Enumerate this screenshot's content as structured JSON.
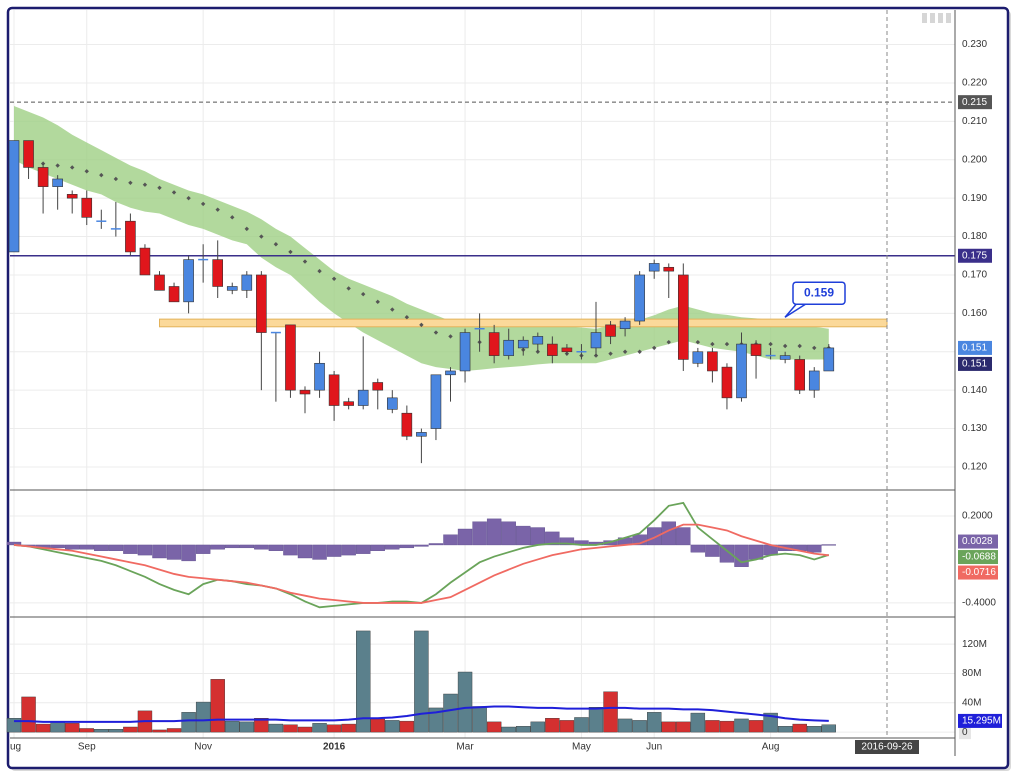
{
  "chart_data": {
    "type": "candlestick",
    "categories": [
      "ug",
      null,
      null,
      null,
      null,
      "Sep",
      null,
      null,
      null,
      null,
      null,
      null,
      null,
      "Nov",
      null,
      null,
      null,
      null,
      null,
      null,
      null,
      null,
      "2016",
      null,
      null,
      null,
      null,
      null,
      null,
      null,
      null,
      "Mar",
      null,
      null,
      null,
      null,
      null,
      null,
      null,
      "May",
      null,
      null,
      null,
      null,
      "Jun",
      null,
      null,
      null,
      null,
      null,
      null,
      null,
      "Aug",
      null,
      null,
      null,
      null,
      null,
      null,
      null,
      "2016-09-26"
    ],
    "open": [
      0.176,
      0.205,
      0.198,
      0.193,
      0.191,
      0.19,
      0.184,
      0.182,
      0.184,
      0.177,
      0.17,
      0.167,
      0.163,
      0.174,
      0.174,
      0.166,
      0.166,
      0.17,
      0.155,
      0.157,
      0.14,
      0.14,
      0.144,
      0.137,
      0.136,
      0.142,
      0.135,
      0.134,
      0.128,
      0.13,
      0.144,
      0.145,
      0.156,
      0.155,
      0.149,
      0.151,
      0.152,
      0.152,
      0.151,
      0.15,
      0.151,
      0.157,
      0.156,
      0.158,
      0.171,
      0.172,
      0.17,
      0.147,
      0.15,
      0.146,
      0.138,
      0.152,
      0.149,
      0.148,
      0.148,
      0.14,
      0.145,
      null,
      null,
      null,
      null
    ],
    "high": [
      0.205,
      0.205,
      0.199,
      0.196,
      0.192,
      0.192,
      0.187,
      0.189,
      0.186,
      0.178,
      0.171,
      0.168,
      0.175,
      0.178,
      0.179,
      0.168,
      0.171,
      0.171,
      0.155,
      0.157,
      0.141,
      0.15,
      0.145,
      0.138,
      0.154,
      0.143,
      0.14,
      0.136,
      0.13,
      0.144,
      0.146,
      0.156,
      0.16,
      0.157,
      0.156,
      0.154,
      0.155,
      0.154,
      0.152,
      0.152,
      0.163,
      0.158,
      0.159,
      0.171,
      0.174,
      0.173,
      0.173,
      0.151,
      0.151,
      0.147,
      0.155,
      0.153,
      0.151,
      0.15,
      0.149,
      0.146,
      0.152,
      null,
      null,
      null,
      null
    ],
    "low": [
      0.176,
      0.195,
      0.186,
      0.187,
      0.186,
      0.183,
      0.182,
      0.18,
      0.175,
      0.17,
      0.166,
      0.163,
      0.16,
      0.168,
      0.164,
      0.165,
      0.164,
      0.14,
      0.137,
      0.138,
      0.134,
      0.138,
      0.132,
      0.135,
      0.135,
      0.135,
      0.134,
      0.127,
      0.121,
      0.127,
      0.137,
      0.142,
      0.15,
      0.147,
      0.148,
      0.149,
      0.15,
      0.147,
      0.149,
      0.148,
      0.149,
      0.152,
      0.154,
      0.157,
      0.169,
      0.164,
      0.145,
      0.146,
      0.142,
      0.135,
      0.137,
      0.143,
      0.148,
      0.147,
      0.139,
      0.138,
      0.145,
      null,
      null,
      null,
      null
    ],
    "close": [
      0.205,
      0.198,
      0.193,
      0.195,
      0.19,
      0.185,
      0.184,
      0.182,
      0.176,
      0.17,
      0.166,
      0.163,
      0.174,
      0.174,
      0.167,
      0.167,
      0.17,
      0.155,
      0.155,
      0.14,
      0.139,
      0.147,
      0.136,
      0.136,
      0.14,
      0.14,
      0.138,
      0.128,
      0.129,
      0.144,
      0.145,
      0.155,
      0.156,
      0.149,
      0.153,
      0.153,
      0.154,
      0.149,
      0.15,
      0.15,
      0.155,
      0.154,
      0.158,
      0.17,
      0.173,
      0.171,
      0.148,
      0.15,
      0.145,
      0.138,
      0.152,
      0.149,
      0.149,
      0.149,
      0.14,
      0.145,
      0.151,
      null,
      null,
      null,
      null
    ],
    "up_color": "#4a86e0",
    "down_color": "#e0161c",
    "ylim": [
      0.114,
      0.239
    ],
    "yticks": [
      {
        "value": 0.12,
        "label": "0.120"
      },
      {
        "value": 0.13,
        "label": "0.130"
      },
      {
        "value": 0.14,
        "label": "0.140"
      },
      {
        "value": 0.15,
        "label": "0.150"
      },
      {
        "value": 0.16,
        "label": "0.160"
      },
      {
        "value": 0.17,
        "label": "0.170"
      },
      {
        "value": 0.18,
        "label": "0.180"
      },
      {
        "value": 0.19,
        "label": "0.190"
      },
      {
        "value": 0.2,
        "label": "0.200"
      },
      {
        "value": 0.21,
        "label": "0.210"
      },
      {
        "value": 0.22,
        "label": "0.220"
      },
      {
        "value": 0.23,
        "label": "0.230"
      }
    ],
    "grid": true,
    "band": {
      "color": "#9fcf84",
      "upper": [
        0.214,
        0.2125,
        0.211,
        0.209,
        0.2065,
        0.2045,
        0.2025,
        0.2005,
        0.1985,
        0.197,
        0.195,
        0.1935,
        0.192,
        0.191,
        0.1895,
        0.188,
        0.1865,
        0.1845,
        0.182,
        0.18,
        0.177,
        0.174,
        0.171,
        0.169,
        0.1675,
        0.166,
        0.1645,
        0.1625,
        0.161,
        0.1595,
        0.158,
        0.157,
        0.157,
        0.157,
        0.157,
        0.157,
        0.157,
        0.157,
        0.1567,
        0.1563,
        0.156,
        0.1568,
        0.1575,
        0.1583,
        0.1595,
        0.161,
        0.162,
        0.161,
        0.16,
        0.1596,
        0.159,
        0.1587,
        0.1583,
        0.1577,
        0.157,
        0.1565,
        0.156,
        null,
        null,
        null,
        null
      ],
      "lower": [
        0.2,
        0.198,
        0.1965,
        0.195,
        0.1935,
        0.192,
        0.191,
        0.189,
        0.1875,
        0.1865,
        0.186,
        0.1845,
        0.183,
        0.182,
        0.1805,
        0.179,
        0.178,
        0.1745,
        0.172,
        0.17,
        0.1665,
        0.163,
        0.16,
        0.1575,
        0.155,
        0.153,
        0.151,
        0.149,
        0.147,
        0.146,
        0.1455,
        0.145,
        0.1453,
        0.1457,
        0.146,
        0.1463,
        0.1467,
        0.147,
        0.147,
        0.147,
        0.147,
        0.148,
        0.149,
        0.15,
        0.151,
        0.152,
        0.153,
        0.152,
        0.151,
        0.1505,
        0.15,
        0.149,
        0.148,
        0.148,
        0.148,
        0.148,
        0.148,
        null,
        null,
        null,
        null
      ]
    },
    "midline": {
      "color": "#555555",
      "values": [
        null,
        0.2,
        0.199,
        0.1985,
        0.198,
        0.197,
        0.196,
        0.195,
        0.194,
        0.1935,
        0.1927,
        0.1915,
        0.19,
        0.1885,
        0.187,
        0.185,
        0.182,
        0.18,
        0.178,
        0.176,
        0.1735,
        0.171,
        0.169,
        0.1665,
        0.165,
        0.163,
        0.161,
        0.159,
        0.157,
        0.155,
        0.154,
        0.153,
        0.1525,
        0.152,
        0.151,
        0.1505,
        0.15,
        0.15,
        0.1495,
        0.149,
        0.149,
        0.1495,
        0.15,
        0.15,
        0.151,
        0.1525,
        0.153,
        0.1525,
        0.152,
        0.152,
        0.152,
        0.152,
        0.152,
        0.1515,
        0.1515,
        0.151,
        0.151,
        null,
        null,
        null,
        null
      ]
    },
    "hlines": [
      {
        "value": 0.215,
        "color": "#555555",
        "dashed": true
      },
      {
        "value": 0.175,
        "color": "#3a2f8a",
        "dashed": false
      }
    ],
    "zone": {
      "from": 0.1565,
      "to": 0.1585,
      "x_index": [
        10,
        60
      ],
      "color": "#fbd99a",
      "border": "#e3b25a"
    },
    "callout": {
      "value": 0.159,
      "color": "#1f3fd9"
    },
    "macd": {
      "ylim": [
        -0.497,
        0.379
      ],
      "yticks": [
        {
          "value": -0.4,
          "label": "-0.4000"
        },
        {
          "value": 0.2,
          "label": "0.2000"
        }
      ],
      "histogram": {
        "color": "#7a64a8",
        "values": [
          0.02,
          -0.01,
          -0.02,
          -0.02,
          -0.03,
          -0.03,
          -0.04,
          -0.04,
          -0.06,
          -0.07,
          -0.09,
          -0.1,
          -0.11,
          -0.06,
          -0.03,
          -0.02,
          -0.02,
          -0.03,
          -0.04,
          -0.07,
          -0.09,
          -0.1,
          -0.08,
          -0.07,
          -0.06,
          -0.04,
          -0.03,
          -0.02,
          -0.01,
          0.01,
          0.07,
          0.11,
          0.16,
          0.18,
          0.16,
          0.13,
          0.12,
          0.09,
          0.05,
          0.03,
          0.02,
          0.03,
          0.05,
          0.07,
          0.12,
          0.16,
          0.12,
          -0.05,
          -0.08,
          -0.12,
          -0.15,
          -0.1,
          -0.07,
          -0.04,
          -0.04,
          -0.05,
          0.0028,
          null,
          null,
          null,
          null
        ]
      },
      "macd": {
        "color": "#6aa45a",
        "values": [
          0,
          -0.01,
          -0.03,
          -0.05,
          -0.07,
          -0.09,
          -0.11,
          -0.14,
          -0.18,
          -0.22,
          -0.27,
          -0.31,
          -0.34,
          -0.27,
          -0.24,
          -0.25,
          -0.27,
          -0.28,
          -0.3,
          -0.34,
          -0.39,
          -0.43,
          -0.42,
          -0.41,
          -0.4,
          -0.4,
          -0.39,
          -0.39,
          -0.4,
          -0.34,
          -0.26,
          -0.19,
          -0.12,
          -0.08,
          -0.05,
          -0.02,
          0,
          0.01,
          0.01,
          0,
          0,
          0.02,
          0.05,
          0.08,
          0.17,
          0.27,
          0.29,
          0.12,
          0.04,
          -0.04,
          -0.12,
          -0.1,
          -0.07,
          -0.06,
          -0.07,
          -0.1,
          -0.0688,
          null,
          null,
          null,
          null
        ]
      },
      "signal": {
        "color": "#f06a62",
        "values": [
          0,
          -0.01,
          -0.02,
          -0.03,
          -0.04,
          -0.06,
          -0.08,
          -0.1,
          -0.12,
          -0.14,
          -0.17,
          -0.2,
          -0.22,
          -0.23,
          -0.24,
          -0.25,
          -0.26,
          -0.28,
          -0.3,
          -0.33,
          -0.35,
          -0.37,
          -0.38,
          -0.39,
          -0.4,
          -0.4,
          -0.4,
          -0.4,
          -0.4,
          -0.38,
          -0.36,
          -0.31,
          -0.26,
          -0.21,
          -0.17,
          -0.13,
          -0.1,
          -0.07,
          -0.05,
          -0.03,
          -0.02,
          -0.01,
          0,
          0.01,
          0.05,
          0.1,
          0.14,
          0.14,
          0.12,
          0.1,
          0.06,
          0.03,
          0,
          -0.02,
          -0.04,
          -0.06,
          -0.0716,
          null,
          null,
          null,
          null
        ]
      }
    },
    "volume": {
      "ylim": [
        -8,
        157
      ],
      "yticks": [
        0,
        {
          "value": 40,
          "label": "40M"
        },
        {
          "value": 80,
          "label": "80M"
        },
        {
          "value": 120,
          "label": "120M"
        }
      ],
      "up_color": "#5b808c",
      "down_color": "#d43030",
      "values": [
        19,
        48,
        11,
        14,
        12,
        5,
        4,
        4,
        7,
        29,
        3,
        5,
        27,
        41,
        72,
        15,
        14,
        19,
        11,
        10,
        7,
        12,
        10,
        11,
        138,
        18,
        16,
        15,
        138,
        33,
        52,
        82,
        35,
        14,
        7,
        8,
        14,
        19,
        16,
        20,
        34,
        55,
        18,
        16,
        27,
        14,
        14,
        26,
        16,
        15,
        18,
        16,
        26,
        8,
        11,
        8,
        10,
        null,
        null,
        null,
        null
      ],
      "ma": {
        "color": "#1f1fd9",
        "last_label": "15.295M",
        "values": [
          15,
          15,
          14,
          14,
          14,
          14,
          14,
          14,
          14,
          15,
          15,
          15,
          16,
          16,
          17,
          17,
          17,
          17,
          17,
          16,
          16,
          16,
          16,
          17,
          19,
          19,
          20,
          22,
          25,
          27,
          30,
          33,
          34,
          35,
          35,
          34,
          33,
          33,
          32,
          32,
          32,
          33,
          33,
          32,
          32,
          32,
          31,
          31,
          30,
          28,
          26,
          24,
          22,
          19,
          17,
          16,
          15.295,
          null,
          null,
          null,
          null
        ]
      }
    }
  }
}
